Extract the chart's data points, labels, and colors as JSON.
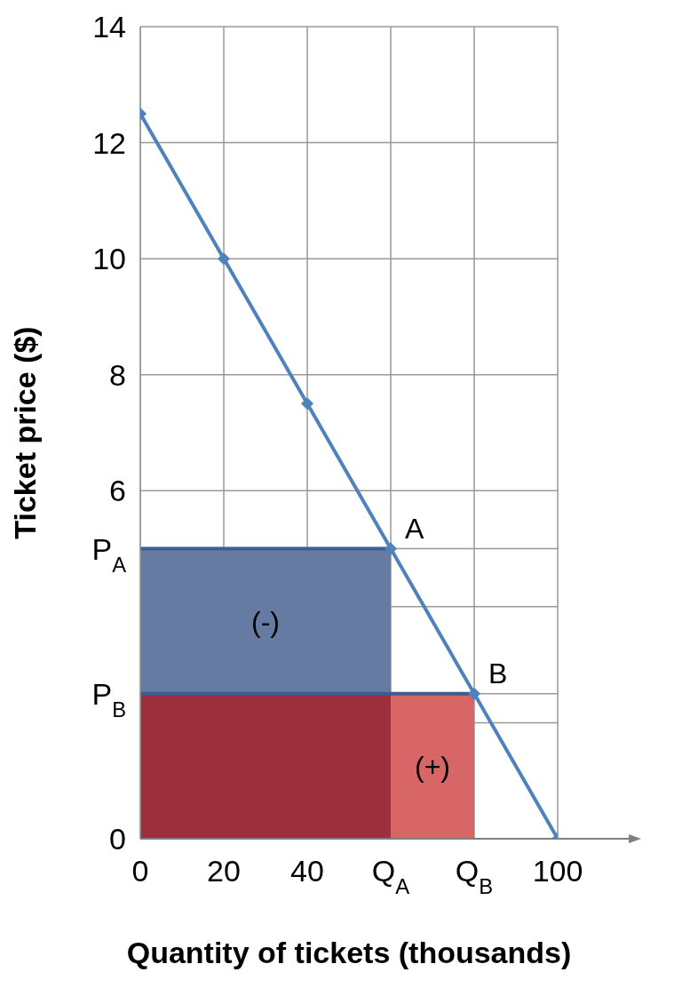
{
  "chart_data": {
    "type": "line",
    "xlabel": "Quantity of tickets (thousands)",
    "ylabel": "Ticket price ($)",
    "xlim": [
      0,
      100
    ],
    "xticks": [
      0,
      20,
      40,
      {
        "value": 60,
        "label": "Q$_{A}$"
      },
      {
        "value": 80,
        "label": "Q$_{B}$"
      },
      100
    ],
    "ylim": [
      0,
      14
    ],
    "yticks": [
      0,
      {
        "value": 2,
        "label": null
      },
      {
        "value": 2.5,
        "label": "P$_{B}$"
      },
      {
        "value": 4,
        "label": null
      },
      {
        "value": 5,
        "label": "P$_{A}$"
      },
      6,
      8,
      10,
      12,
      14
    ],
    "grid": true,
    "line_style": "solid",
    "series": [
      {
        "type": "area",
        "color": "#667ba2",
        "x": [
          0,
          60
        ],
        "values": [
          5,
          5
        ]
      },
      {
        "type": "area",
        "color": "#9b2f3e",
        "x": [
          0,
          60
        ],
        "values": [
          2.5,
          2.5
        ]
      },
      {
        "type": "area",
        "color": "#d96667",
        "x": [
          60,
          80
        ],
        "values": [
          2.5,
          2.5
        ]
      },
      {
        "color": "#4f81bd",
        "marker": "diamond",
        "x": [
          0,
          20,
          40,
          60,
          80,
          100
        ],
        "values": [
          12.5,
          10,
          7.5,
          5,
          2.5,
          0
        ]
      }
    ],
    "annotations": [
      {
        "text": "A",
        "x": 60,
        "y": 5
      },
      {
        "text": "B",
        "x": 80,
        "y": 2.5
      },
      "(-)",
      "(+)"
    ]
  }
}
